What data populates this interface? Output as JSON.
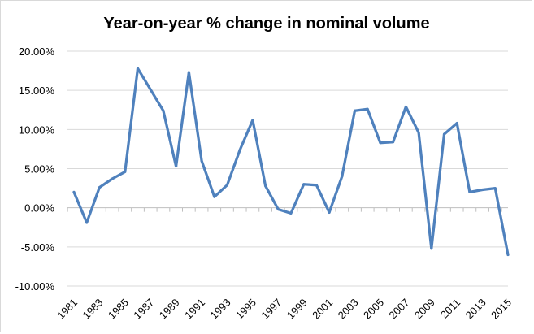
{
  "chart_data": {
    "type": "line",
    "title": "Year-on-year % change in nominal volume",
    "xlabel": "",
    "ylabel": "",
    "x": [
      1981,
      1982,
      1983,
      1984,
      1985,
      1986,
      1987,
      1988,
      1989,
      1990,
      1991,
      1992,
      1993,
      1994,
      1995,
      1996,
      1997,
      1998,
      1999,
      2000,
      2001,
      2002,
      2003,
      2004,
      2005,
      2006,
      2007,
      2008,
      2009,
      2010,
      2011,
      2012,
      2013,
      2014,
      2015
    ],
    "x_tick_labels": [
      "1981",
      "1983",
      "1985",
      "1987",
      "1989",
      "1991",
      "1993",
      "1995",
      "1997",
      "1999",
      "2001",
      "2003",
      "2005",
      "2007",
      "2009",
      "2011",
      "2013",
      "2015"
    ],
    "series": [
      {
        "values": [
          2.0,
          -1.9,
          2.6,
          3.7,
          4.6,
          17.8,
          15.1,
          12.4,
          5.3,
          17.3,
          6.0,
          1.4,
          2.9,
          7.4,
          11.2,
          2.8,
          -0.2,
          -0.7,
          3.0,
          2.9,
          -0.6,
          4.0,
          12.4,
          12.6,
          8.3,
          8.4,
          12.9,
          9.6,
          -5.2,
          9.4,
          10.8,
          2.0,
          2.3,
          2.5,
          -6.0
        ]
      }
    ],
    "y_tick_labels": [
      "20.00%",
      "15.00%",
      "10.00%",
      "5.00%",
      "0.00%",
      "-5.00%",
      "-10.00%"
    ],
    "y_ticks": [
      20,
      15,
      10,
      5,
      0,
      -5,
      -10
    ],
    "ylim": [
      -10,
      20
    ],
    "grid": true,
    "legend": "none",
    "colors": {
      "series": "#4f81bd",
      "grid": "#d9d9d9",
      "axis": "#bfbfbf"
    }
  }
}
